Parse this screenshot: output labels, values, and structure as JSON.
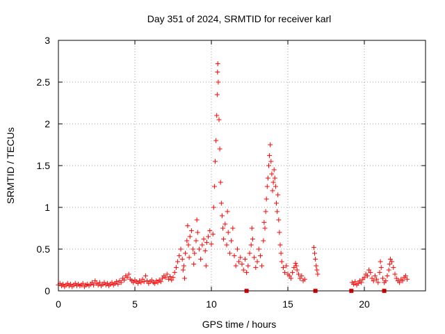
{
  "chart_data": {
    "type": "scatter",
    "title": "Day 351 of 2024, SRMTID for receiver karl",
    "xlabel": "GPS time / hours",
    "ylabel": "SRMTID / TECUs",
    "xlim": [
      0,
      24
    ],
    "ylim": [
      0,
      3
    ],
    "grid": true,
    "legend": "none",
    "marker": "plus",
    "color": "#ff0000",
    "xticks": [
      {
        "value": 0,
        "label": "0"
      },
      {
        "value": 5,
        "label": "5"
      },
      {
        "value": 10,
        "label": "10"
      },
      {
        "value": 15,
        "label": "15"
      },
      {
        "value": 20,
        "label": "20"
      }
    ],
    "yticks": [
      {
        "value": 0,
        "label": "0"
      },
      {
        "value": 0.5,
        "label": "0.5"
      },
      {
        "value": 1,
        "label": "1"
      },
      {
        "value": 1.5,
        "label": "1.5"
      },
      {
        "value": 2,
        "label": "2"
      },
      {
        "value": 2.5,
        "label": "2.5"
      },
      {
        "value": 3,
        "label": "3"
      }
    ],
    "series": [
      {
        "name": "SRMTID",
        "points": [
          [
            0.0,
            0.07
          ],
          [
            0.1,
            0.09
          ],
          [
            0.2,
            0.06
          ],
          [
            0.3,
            0.08
          ],
          [
            0.4,
            0.05
          ],
          [
            0.5,
            0.07
          ],
          [
            0.6,
            0.09
          ],
          [
            0.7,
            0.06
          ],
          [
            0.8,
            0.08
          ],
          [
            0.9,
            0.05
          ],
          [
            1.0,
            0.07
          ],
          [
            1.1,
            0.09
          ],
          [
            1.2,
            0.06
          ],
          [
            1.3,
            0.08
          ],
          [
            1.4,
            0.06
          ],
          [
            1.5,
            0.07
          ],
          [
            1.6,
            0.09
          ],
          [
            1.7,
            0.05
          ],
          [
            1.8,
            0.07
          ],
          [
            1.9,
            0.08
          ],
          [
            2.0,
            0.06
          ],
          [
            2.1,
            0.08
          ],
          [
            2.2,
            0.1
          ],
          [
            2.3,
            0.07
          ],
          [
            2.4,
            0.12
          ],
          [
            2.5,
            0.09
          ],
          [
            2.6,
            0.07
          ],
          [
            2.7,
            0.1
          ],
          [
            2.8,
            0.06
          ],
          [
            2.9,
            0.08
          ],
          [
            3.0,
            0.1
          ],
          [
            3.1,
            0.07
          ],
          [
            3.2,
            0.09
          ],
          [
            3.3,
            0.06
          ],
          [
            3.4,
            0.08
          ],
          [
            3.5,
            0.1
          ],
          [
            3.6,
            0.07
          ],
          [
            3.7,
            0.09
          ],
          [
            3.8,
            0.11
          ],
          [
            3.9,
            0.08
          ],
          [
            4.0,
            0.12
          ],
          [
            4.1,
            0.1
          ],
          [
            4.2,
            0.15
          ],
          [
            4.3,
            0.13
          ],
          [
            4.4,
            0.18
          ],
          [
            4.5,
            0.16
          ],
          [
            4.6,
            0.2
          ],
          [
            4.7,
            0.14
          ],
          [
            4.8,
            0.12
          ],
          [
            4.9,
            0.1
          ],
          [
            5.0,
            0.13
          ],
          [
            5.1,
            0.11
          ],
          [
            5.2,
            0.09
          ],
          [
            5.3,
            0.12
          ],
          [
            5.4,
            0.1
          ],
          [
            5.5,
            0.14
          ],
          [
            5.6,
            0.11
          ],
          [
            5.7,
            0.18
          ],
          [
            5.8,
            0.12
          ],
          [
            5.9,
            0.09
          ],
          [
            6.0,
            0.11
          ],
          [
            6.1,
            0.13
          ],
          [
            6.2,
            0.1
          ],
          [
            6.3,
            0.09
          ],
          [
            6.4,
            0.12
          ],
          [
            6.5,
            0.1
          ],
          [
            6.6,
            0.13
          ],
          [
            6.7,
            0.11
          ],
          [
            6.8,
            0.15
          ],
          [
            6.9,
            0.18
          ],
          [
            7.0,
            0.16
          ],
          [
            7.1,
            0.2
          ],
          [
            7.2,
            0.14
          ],
          [
            7.3,
            0.17
          ],
          [
            7.4,
            0.13
          ],
          [
            7.5,
            0.16
          ],
          [
            7.6,
            0.22
          ],
          [
            7.7,
            0.28
          ],
          [
            7.8,
            0.35
          ],
          [
            7.9,
            0.42
          ],
          [
            8.0,
            0.5
          ],
          [
            8.1,
            0.38
          ],
          [
            8.15,
            0.25
          ],
          [
            8.2,
            0.3
          ],
          [
            8.25,
            0.15
          ],
          [
            8.3,
            0.45
          ],
          [
            8.4,
            0.6
          ],
          [
            8.45,
            0.78
          ],
          [
            8.5,
            0.55
          ],
          [
            8.55,
            0.4
          ],
          [
            8.6,
            0.65
          ],
          [
            8.7,
            0.72
          ],
          [
            8.8,
            0.5
          ],
          [
            8.85,
            0.32
          ],
          [
            8.9,
            0.45
          ],
          [
            9.0,
            0.6
          ],
          [
            9.05,
            0.85
          ],
          [
            9.1,
            0.7
          ],
          [
            9.2,
            0.5
          ],
          [
            9.3,
            0.38
          ],
          [
            9.4,
            0.55
          ],
          [
            9.5,
            0.62
          ],
          [
            9.6,
            0.48
          ],
          [
            9.65,
            0.3
          ],
          [
            9.7,
            0.58
          ],
          [
            9.8,
            0.65
          ],
          [
            9.9,
            0.72
          ],
          [
            10.0,
            0.56
          ],
          [
            10.1,
            0.68
          ],
          [
            10.15,
            1.0
          ],
          [
            10.2,
            1.25
          ],
          [
            10.25,
            1.55
          ],
          [
            10.3,
            1.8
          ],
          [
            10.35,
            2.1
          ],
          [
            10.38,
            2.35
          ],
          [
            10.4,
            2.62
          ],
          [
            10.42,
            2.72
          ],
          [
            10.45,
            2.5
          ],
          [
            10.5,
            2.05
          ],
          [
            10.55,
            1.7
          ],
          [
            10.6,
            1.3
          ],
          [
            10.65,
            1.05
          ],
          [
            10.7,
            0.9
          ],
          [
            10.75,
            0.75
          ],
          [
            10.8,
            0.62
          ],
          [
            10.9,
            0.8
          ],
          [
            11.0,
            0.55
          ],
          [
            11.05,
            0.95
          ],
          [
            11.1,
            0.7
          ],
          [
            11.2,
            0.45
          ],
          [
            11.3,
            0.6
          ],
          [
            11.4,
            0.75
          ],
          [
            11.5,
            0.42
          ],
          [
            11.6,
            0.3
          ],
          [
            11.7,
            0.5
          ],
          [
            11.8,
            0.35
          ],
          [
            11.9,
            0.4
          ],
          [
            12.0,
            0.32
          ],
          [
            12.1,
            0.25
          ],
          [
            12.2,
            0.38
          ],
          [
            12.3,
            0.22
          ],
          [
            12.4,
            0.3
          ],
          [
            12.5,
            0.45
          ],
          [
            12.6,
            0.55
          ],
          [
            12.65,
            0.75
          ],
          [
            12.7,
            0.62
          ],
          [
            12.8,
            0.4
          ],
          [
            12.9,
            0.28
          ],
          [
            13.0,
            0.35
          ],
          [
            13.1,
            0.5
          ],
          [
            13.2,
            0.42
          ],
          [
            13.3,
            0.3
          ],
          [
            13.4,
            0.6
          ],
          [
            13.45,
            0.82
          ],
          [
            13.5,
            0.75
          ],
          [
            13.55,
            0.95
          ],
          [
            13.6,
            1.1
          ],
          [
            13.65,
            1.25
          ],
          [
            13.7,
            1.35
          ],
          [
            13.75,
            1.5
          ],
          [
            13.8,
            1.62
          ],
          [
            13.85,
            1.75
          ],
          [
            13.9,
            1.55
          ],
          [
            13.95,
            1.4
          ],
          [
            14.0,
            1.2
          ],
          [
            14.05,
            1.3
          ],
          [
            14.1,
            1.45
          ],
          [
            14.15,
            1.35
          ],
          [
            14.2,
            1.25
          ],
          [
            14.25,
            1.05
          ],
          [
            14.3,
            0.95
          ],
          [
            14.35,
            1.15
          ],
          [
            14.4,
            0.85
          ],
          [
            14.45,
            0.7
          ],
          [
            14.5,
            0.55
          ],
          [
            14.55,
            0.45
          ],
          [
            14.6,
            0.35
          ],
          [
            14.7,
            0.28
          ],
          [
            14.8,
            0.22
          ],
          [
            14.9,
            0.3
          ],
          [
            15.0,
            0.2
          ],
          [
            15.1,
            0.18
          ],
          [
            15.2,
            0.15
          ],
          [
            15.3,
            0.22
          ],
          [
            15.4,
            0.28
          ],
          [
            15.5,
            0.33
          ],
          [
            15.55,
            0.3
          ],
          [
            15.6,
            0.25
          ],
          [
            15.7,
            0.2
          ],
          [
            15.8,
            0.15
          ],
          [
            15.9,
            0.18
          ],
          [
            16.0,
            0.12
          ],
          [
            16.1,
            0.14
          ],
          [
            16.7,
            0.52
          ],
          [
            16.75,
            0.45
          ],
          [
            16.8,
            0.38
          ],
          [
            16.85,
            0.3
          ],
          [
            16.9,
            0.25
          ],
          [
            16.95,
            0.2
          ],
          [
            19.2,
            0.1
          ],
          [
            19.3,
            0.08
          ],
          [
            19.4,
            0.11
          ],
          [
            19.5,
            0.07
          ],
          [
            19.6,
            0.09
          ],
          [
            19.7,
            0.12
          ],
          [
            19.8,
            0.1
          ],
          [
            19.9,
            0.14
          ],
          [
            20.0,
            0.16
          ],
          [
            20.1,
            0.2
          ],
          [
            20.2,
            0.18
          ],
          [
            20.3,
            0.25
          ],
          [
            20.4,
            0.22
          ],
          [
            20.5,
            0.15
          ],
          [
            20.6,
            0.12
          ],
          [
            20.7,
            0.18
          ],
          [
            20.8,
            0.14
          ],
          [
            20.9,
            0.1
          ],
          [
            21.0,
            0.22
          ],
          [
            21.05,
            0.35
          ],
          [
            21.1,
            0.28
          ],
          [
            21.2,
            0.15
          ],
          [
            21.3,
            0.1
          ],
          [
            21.4,
            0.12
          ],
          [
            21.5,
            0.18
          ],
          [
            21.6,
            0.25
          ],
          [
            21.65,
            0.32
          ],
          [
            21.7,
            0.38
          ],
          [
            21.8,
            0.35
          ],
          [
            21.9,
            0.28
          ],
          [
            22.0,
            0.2
          ],
          [
            22.1,
            0.15
          ],
          [
            22.2,
            0.12
          ],
          [
            22.3,
            0.1
          ],
          [
            22.4,
            0.14
          ],
          [
            22.5,
            0.12
          ],
          [
            22.6,
            0.16
          ],
          [
            22.7,
            0.18
          ],
          [
            22.8,
            0.14
          ]
        ]
      },
      {
        "name": "zero-markers",
        "marker": "square",
        "points": [
          [
            12.3,
            0
          ],
          [
            16.8,
            0
          ],
          [
            19.15,
            0
          ],
          [
            21.3,
            0
          ]
        ]
      }
    ]
  }
}
